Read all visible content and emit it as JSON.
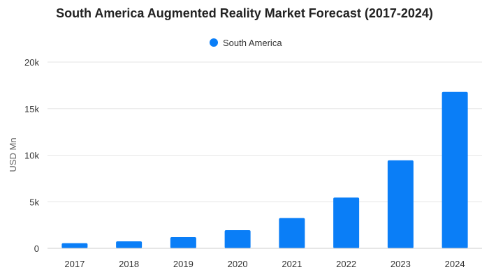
{
  "chart_data": {
    "type": "bar",
    "title": "South America Augmented Reality Market Forecast (2017-2024)",
    "xlabel": "",
    "ylabel": "USD Mn",
    "categories": [
      "2017",
      "2018",
      "2019",
      "2020",
      "2021",
      "2022",
      "2023",
      "2024"
    ],
    "series": [
      {
        "name": "South America",
        "color": "#0a7ef7",
        "values": [
          550,
          750,
          1200,
          1950,
          3250,
          5450,
          9450,
          16800
        ]
      }
    ],
    "ylim": [
      0,
      20000
    ],
    "yticks": [
      0,
      5000,
      10000,
      15000,
      20000
    ],
    "ytick_labels": [
      "0",
      "5k",
      "10k",
      "15k",
      "20k"
    ],
    "grid": true,
    "legend_position": "top-center"
  }
}
